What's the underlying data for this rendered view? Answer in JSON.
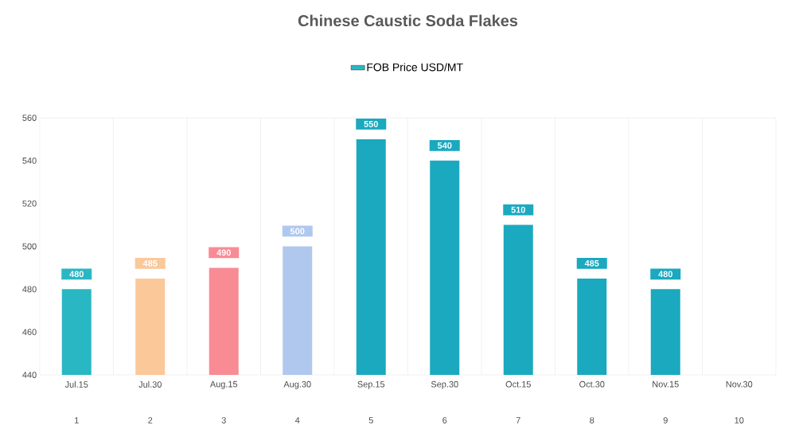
{
  "chart_data": {
    "type": "bar",
    "title": "Chinese Caustic Soda Flakes",
    "categories": [
      "Jul.15",
      "Jul.30",
      "Aug.15",
      "Aug.30",
      "Sep.15",
      "Sep.30",
      "Oct.15",
      "Oct.30",
      "Nov.15",
      "Nov.30"
    ],
    "series": [
      {
        "name": "FOB Price USD/MT",
        "colors": [
          "#2ab7c4",
          "#fbc89a",
          "#f98b95",
          "#b0c8ee",
          "#1aa9bf",
          "#1aa9bf",
          "#1aa9bf",
          "#1aa9bf",
          "#1aa9bf",
          "#1aa9bf"
        ],
        "values": [
          480,
          485,
          490,
          500,
          550,
          540,
          510,
          485,
          480,
          null
        ]
      }
    ],
    "ylim": [
      440,
      560
    ],
    "yticks": [
      440,
      460,
      480,
      500,
      520,
      540,
      560
    ],
    "annotations": [
      "1",
      "2",
      "3",
      "4",
      "5",
      "6",
      "7",
      "8",
      "9",
      "10"
    ],
    "data_labels": true,
    "grid": "x",
    "legend": "top"
  }
}
